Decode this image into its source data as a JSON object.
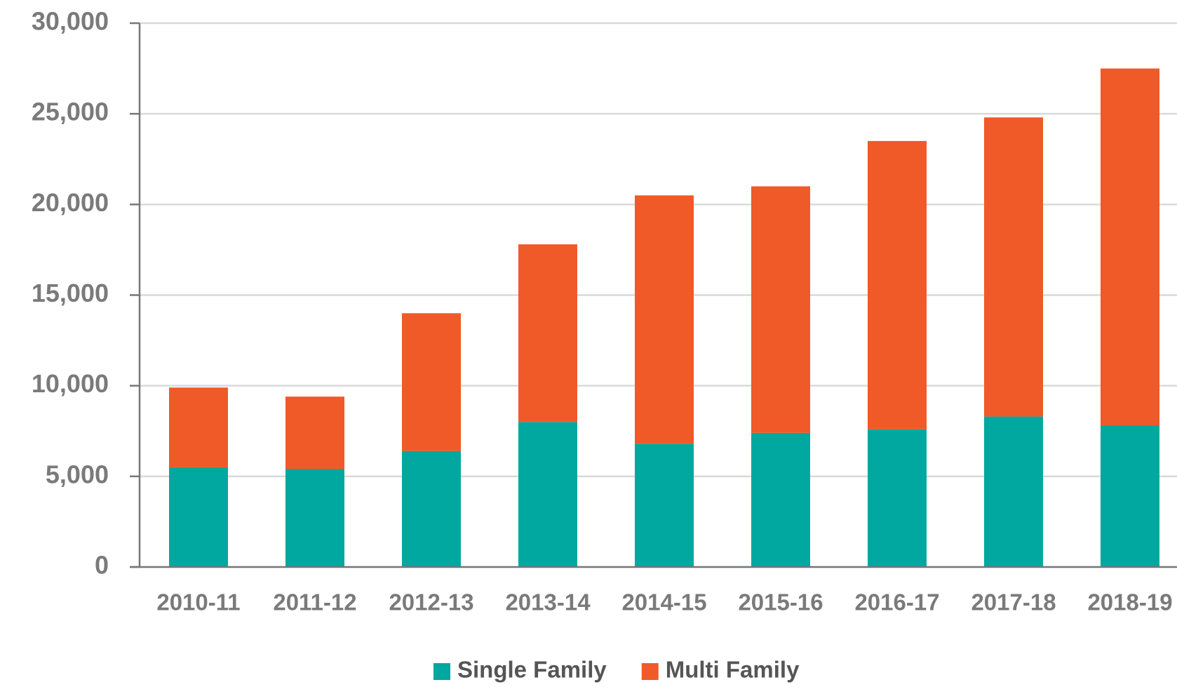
{
  "chart_data": {
    "type": "stacked_bar",
    "categories": [
      "2010-11",
      "2011-12",
      "2012-13",
      "2013-14",
      "2014-15",
      "2015-16",
      "2016-17",
      "2017-18",
      "2018-19"
    ],
    "series": [
      {
        "name": "Single Family",
        "color": "#00a8a0",
        "values": [
          5500,
          5400,
          6400,
          8000,
          6800,
          7400,
          7600,
          8300,
          7800
        ]
      },
      {
        "name": "Multi Family",
        "color": "#f05a28",
        "values": [
          4400,
          4000,
          7600,
          9800,
          13700,
          13600,
          15900,
          16500,
          19700
        ]
      }
    ],
    "ylim": [
      0,
      30000
    ],
    "yticks": [
      0,
      {
        "value": 5000,
        "label": "5,000"
      },
      {
        "value": 10000,
        "label": "10,000"
      },
      {
        "value": 15000,
        "label": "15,000"
      },
      {
        "value": 20000,
        "label": "20,000"
      },
      {
        "value": 25000,
        "label": "25,000"
      },
      {
        "value": 30000,
        "label": "30,000"
      }
    ],
    "grid": true,
    "legend": "bottom"
  }
}
